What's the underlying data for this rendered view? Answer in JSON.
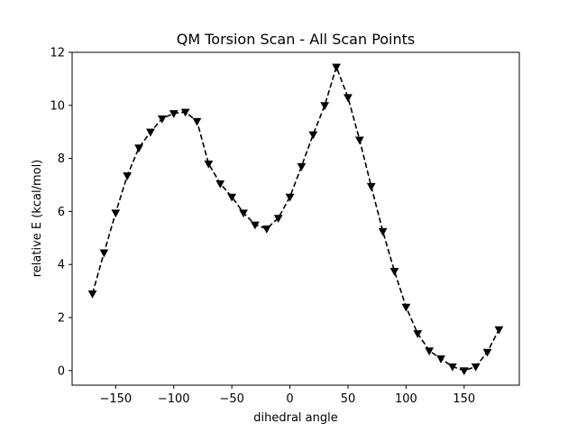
{
  "chart_data": {
    "type": "line",
    "title": "QM Torsion Scan - All Scan Points",
    "xlabel": "dihedral angle",
    "ylabel": "relative E (kcal/mol)",
    "xlim": [
      -187.5,
      197.5
    ],
    "ylim": [
      -0.55,
      12.0
    ],
    "xticks": [
      -150,
      -100,
      -50,
      0,
      50,
      100,
      150
    ],
    "xtick_labels": [
      "−150",
      "−100",
      "−50",
      "0",
      "50",
      "100",
      "150"
    ],
    "yticks": [
      0,
      2,
      4,
      6,
      8,
      10,
      12
    ],
    "ytick_labels": [
      "0",
      "2",
      "4",
      "6",
      "8",
      "10",
      "12"
    ],
    "grid": false,
    "series": [
      {
        "line_style": "dashed",
        "marker": "triangle-down",
        "color": "#000000",
        "x": [
          -170,
          -160,
          -150,
          -140,
          -130,
          -120,
          -110,
          -100,
          -90,
          -80,
          -70,
          -60,
          -50,
          -40,
          -30,
          -20,
          -10,
          0,
          10,
          20,
          30,
          40,
          50,
          60,
          70,
          80,
          90,
          100,
          110,
          120,
          130,
          140,
          150,
          160,
          170,
          180
        ],
        "y": [
          2.9,
          4.45,
          5.95,
          7.35,
          8.4,
          9.0,
          9.5,
          9.7,
          9.75,
          9.4,
          7.8,
          7.05,
          6.55,
          5.95,
          5.5,
          5.35,
          5.75,
          6.55,
          7.7,
          8.9,
          10.0,
          11.45,
          10.3,
          8.7,
          6.95,
          5.25,
          3.75,
          2.4,
          1.4,
          0.75,
          0.45,
          0.15,
          0.0,
          0.15,
          0.7,
          1.55
        ]
      }
    ]
  }
}
